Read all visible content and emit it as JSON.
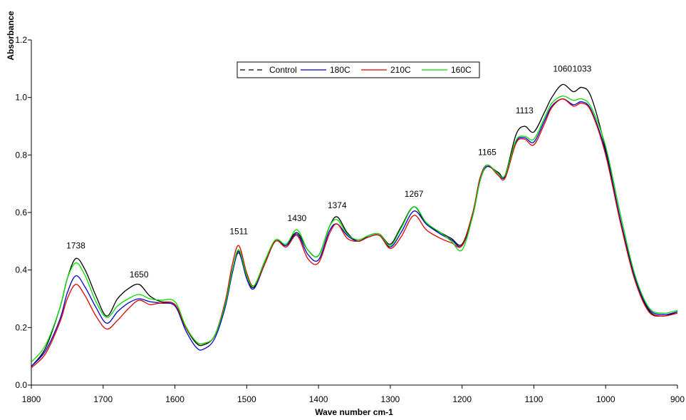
{
  "chart_data": {
    "type": "line",
    "title": "",
    "xlabel": "Wave number cm-1",
    "ylabel": "Absorbance",
    "xlim": [
      1800,
      900
    ],
    "x_reversed": true,
    "ylim": [
      0,
      1.2
    ],
    "xticks": [
      "1800",
      "1700",
      "1600",
      "1500",
      "1400",
      "1300",
      "1200",
      "1100",
      "1000",
      "900"
    ],
    "yticks": [
      "0.0",
      "0.2",
      "0.4",
      "0.6",
      "0.8",
      "1.0",
      "1.2"
    ],
    "grid": false,
    "legend_position": "top-center",
    "annotations": [
      {
        "text": "1738",
        "x": 1738,
        "y": 0.475
      },
      {
        "text": "1650",
        "x": 1650,
        "y": 0.375
      },
      {
        "text": "1511",
        "x": 1511,
        "y": 0.525
      },
      {
        "text": "1430",
        "x": 1430,
        "y": 0.57
      },
      {
        "text": "1374",
        "x": 1374,
        "y": 0.615
      },
      {
        "text": "1267",
        "x": 1267,
        "y": 0.655
      },
      {
        "text": "1165",
        "x": 1165,
        "y": 0.8
      },
      {
        "text": "1113",
        "x": 1113,
        "y": 0.945
      },
      {
        "text": "1060",
        "x": 1060,
        "y": 1.09
      },
      {
        "text": "1033",
        "x": 1033,
        "y": 1.09
      }
    ],
    "series": [
      {
        "name": "Control",
        "color": "#000000",
        "dash": "dash",
        "x": [
          1800,
          1780,
          1760,
          1750,
          1738,
          1725,
          1710,
          1695,
          1680,
          1665,
          1650,
          1635,
          1620,
          1600,
          1585,
          1570,
          1560,
          1545,
          1530,
          1520,
          1511,
          1500,
          1490,
          1475,
          1460,
          1445,
          1430,
          1415,
          1400,
          1385,
          1374,
          1360,
          1345,
          1330,
          1315,
          1300,
          1285,
          1267,
          1250,
          1230,
          1215,
          1200,
          1185,
          1175,
          1165,
          1150,
          1140,
          1125,
          1113,
          1100,
          1085,
          1075,
          1060,
          1045,
          1033,
          1020,
          1000,
          980,
          960,
          940,
          920,
          900
        ],
        "y": [
          0.065,
          0.13,
          0.27,
          0.37,
          0.44,
          0.4,
          0.31,
          0.24,
          0.3,
          0.335,
          0.35,
          0.31,
          0.29,
          0.28,
          0.2,
          0.145,
          0.14,
          0.17,
          0.28,
          0.4,
          0.465,
          0.38,
          0.34,
          0.43,
          0.5,
          0.49,
          0.53,
          0.47,
          0.45,
          0.55,
          0.585,
          0.53,
          0.5,
          0.52,
          0.525,
          0.49,
          0.55,
          0.62,
          0.56,
          0.53,
          0.51,
          0.49,
          0.6,
          0.72,
          0.76,
          0.74,
          0.73,
          0.87,
          0.9,
          0.88,
          0.95,
          1.0,
          1.045,
          1.02,
          1.035,
          1.0,
          0.82,
          0.58,
          0.38,
          0.26,
          0.24,
          0.255
        ]
      },
      {
        "name": "180C",
        "color": "#0000cc",
        "dash": "solid",
        "x": [
          1800,
          1780,
          1760,
          1750,
          1738,
          1725,
          1710,
          1695,
          1680,
          1665,
          1650,
          1635,
          1620,
          1600,
          1585,
          1570,
          1560,
          1545,
          1530,
          1520,
          1511,
          1500,
          1490,
          1475,
          1460,
          1445,
          1430,
          1415,
          1400,
          1385,
          1374,
          1360,
          1345,
          1330,
          1315,
          1300,
          1285,
          1267,
          1250,
          1230,
          1215,
          1200,
          1185,
          1175,
          1165,
          1150,
          1140,
          1125,
          1113,
          1100,
          1085,
          1075,
          1060,
          1045,
          1033,
          1020,
          1000,
          980,
          960,
          940,
          920,
          900
        ],
        "y": [
          0.065,
          0.12,
          0.23,
          0.32,
          0.38,
          0.34,
          0.27,
          0.215,
          0.255,
          0.285,
          0.3,
          0.29,
          0.285,
          0.275,
          0.19,
          0.13,
          0.125,
          0.16,
          0.27,
          0.39,
          0.46,
          0.37,
          0.335,
          0.42,
          0.5,
          0.485,
          0.525,
          0.455,
          0.435,
          0.535,
          0.56,
          0.52,
          0.5,
          0.515,
          0.52,
          0.48,
          0.53,
          0.605,
          0.56,
          0.525,
          0.505,
          0.485,
          0.59,
          0.71,
          0.76,
          0.735,
          0.725,
          0.845,
          0.86,
          0.845,
          0.92,
          0.97,
          0.995,
          0.975,
          0.985,
          0.955,
          0.81,
          0.58,
          0.38,
          0.265,
          0.245,
          0.255
        ]
      },
      {
        "name": "210C",
        "color": "#dd0000",
        "dash": "solid",
        "x": [
          1800,
          1780,
          1760,
          1750,
          1738,
          1725,
          1710,
          1695,
          1680,
          1665,
          1650,
          1635,
          1620,
          1600,
          1585,
          1570,
          1560,
          1545,
          1530,
          1520,
          1511,
          1500,
          1490,
          1475,
          1460,
          1445,
          1430,
          1415,
          1400,
          1385,
          1374,
          1360,
          1345,
          1330,
          1315,
          1300,
          1285,
          1267,
          1250,
          1230,
          1215,
          1200,
          1185,
          1175,
          1165,
          1150,
          1140,
          1125,
          1113,
          1100,
          1085,
          1075,
          1060,
          1045,
          1033,
          1020,
          1000,
          980,
          960,
          940,
          920,
          900
        ],
        "y": [
          0.06,
          0.11,
          0.22,
          0.3,
          0.35,
          0.31,
          0.24,
          0.195,
          0.225,
          0.265,
          0.295,
          0.28,
          0.285,
          0.28,
          0.2,
          0.15,
          0.145,
          0.17,
          0.29,
          0.42,
          0.485,
          0.39,
          0.345,
          0.42,
          0.5,
          0.48,
          0.52,
          0.44,
          0.425,
          0.525,
          0.56,
          0.51,
          0.5,
          0.515,
          0.52,
          0.475,
          0.515,
          0.59,
          0.54,
          0.51,
          0.495,
          0.485,
          0.6,
          0.72,
          0.765,
          0.73,
          0.72,
          0.84,
          0.855,
          0.835,
          0.91,
          0.965,
          0.995,
          0.97,
          0.98,
          0.95,
          0.8,
          0.57,
          0.37,
          0.255,
          0.24,
          0.25
        ]
      },
      {
        "name": "160C",
        "color": "#00dd00",
        "dash": "solid",
        "x": [
          1800,
          1780,
          1760,
          1750,
          1738,
          1725,
          1710,
          1695,
          1680,
          1665,
          1650,
          1635,
          1620,
          1600,
          1585,
          1570,
          1560,
          1545,
          1530,
          1520,
          1511,
          1500,
          1490,
          1475,
          1460,
          1445,
          1430,
          1415,
          1400,
          1385,
          1374,
          1360,
          1345,
          1330,
          1315,
          1300,
          1285,
          1267,
          1250,
          1230,
          1215,
          1200,
          1185,
          1175,
          1165,
          1150,
          1140,
          1125,
          1113,
          1100,
          1085,
          1075,
          1060,
          1045,
          1033,
          1020,
          1000,
          980,
          960,
          940,
          920,
          900
        ],
        "y": [
          0.08,
          0.14,
          0.27,
          0.37,
          0.425,
          0.38,
          0.29,
          0.235,
          0.275,
          0.3,
          0.315,
          0.3,
          0.295,
          0.29,
          0.205,
          0.15,
          0.145,
          0.17,
          0.28,
          0.4,
          0.47,
          0.38,
          0.345,
          0.43,
          0.505,
          0.49,
          0.54,
          0.47,
          0.45,
          0.55,
          0.575,
          0.525,
          0.505,
          0.52,
          0.525,
          0.485,
          0.545,
          0.62,
          0.565,
          0.53,
          0.5,
          0.47,
          0.59,
          0.71,
          0.765,
          0.735,
          0.73,
          0.85,
          0.865,
          0.855,
          0.93,
          0.98,
          1.005,
          0.99,
          0.995,
          0.965,
          0.83,
          0.6,
          0.39,
          0.27,
          0.25,
          0.26
        ]
      }
    ]
  }
}
